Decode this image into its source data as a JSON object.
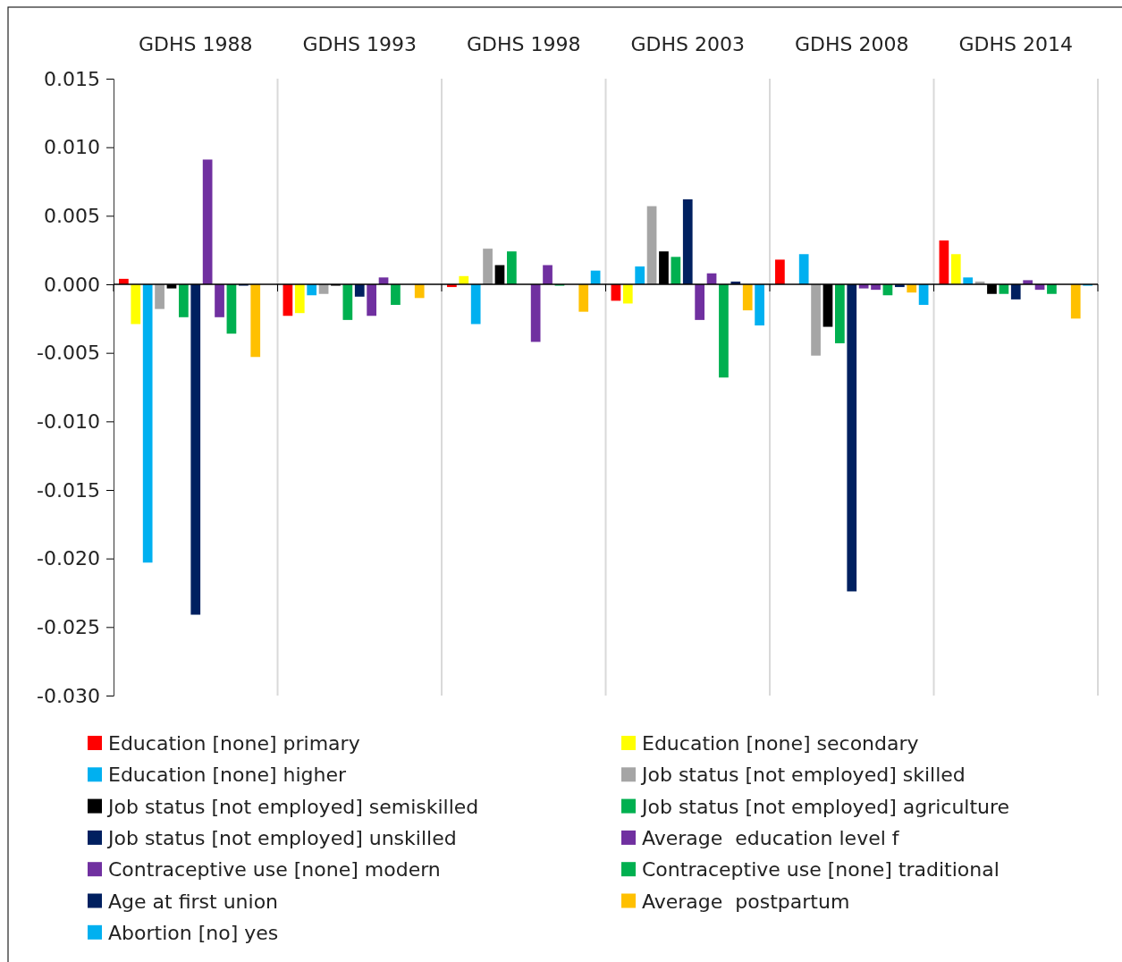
{
  "chart_data": {
    "type": "bar",
    "categories": [
      "GDHS 1988",
      "GDHS 1993",
      "GDHS 1998",
      "GDHS 2003",
      "GDHS 2008",
      "GDHS 2014"
    ],
    "series": [
      {
        "name": "Education [none] primary",
        "color": "#ff0000",
        "values": [
          0.0004,
          -0.0023,
          -0.0002,
          -0.0012,
          0.0018,
          0.0032
        ]
      },
      {
        "name": "Education [none] secondary",
        "color": "#ffff00",
        "values": [
          -0.0029,
          -0.0021,
          0.0006,
          -0.0014,
          0,
          0.0022
        ]
      },
      {
        "name": "Education [none] higher",
        "color": "#00b0f0",
        "values": [
          -0.0203,
          -0.0008,
          -0.0029,
          0.0013,
          0.0022,
          0.0005
        ]
      },
      {
        "name": "Job status [not employed] skilled",
        "color": "#a5a5a5",
        "values": [
          -0.0018,
          -0.0007,
          0.0026,
          0.0057,
          -0.0052,
          0.0002
        ]
      },
      {
        "name": "Job status [not employed] semiskilled",
        "color": "#000000",
        "values": [
          -0.0003,
          -0.0001,
          0.0014,
          0.0024,
          -0.0031,
          -0.0007
        ]
      },
      {
        "name": "Job status [not employed] agriculture",
        "color": "#00b050",
        "values": [
          -0.0024,
          -0.0026,
          0.0024,
          0.002,
          -0.0043,
          -0.0007
        ]
      },
      {
        "name": "Job status [not employed] unskilled",
        "color": "#002060",
        "values": [
          -0.0241,
          -0.0009,
          0,
          0.0062,
          -0.0224,
          -0.0011
        ]
      },
      {
        "name": "Average  education level f",
        "color": "#7030a0",
        "values": [
          0.0091,
          -0.0023,
          -0.0042,
          -0.0026,
          -0.0003,
          0.0003
        ]
      },
      {
        "name": "Contraceptive use [none] modern",
        "color": "#7030a0",
        "values": [
          -0.0024,
          0.0005,
          0.0014,
          0.0008,
          -0.0004,
          -0.0004
        ]
      },
      {
        "name": "Contraceptive use [none] traditional",
        "color": "#00b050",
        "values": [
          -0.0036,
          -0.0015,
          -0.0001,
          -0.0068,
          -0.0008,
          -0.0007
        ]
      },
      {
        "name": "Age at first union",
        "color": "#002060",
        "values": [
          -0.0001,
          0,
          0,
          0.0002,
          -0.0002,
          0
        ]
      },
      {
        "name": "Average  postpartum",
        "color": "#ffc000",
        "values": [
          -0.0053,
          -0.001,
          -0.002,
          -0.0019,
          -0.0006,
          -0.0025
        ]
      },
      {
        "name": "Abortion [no] yes",
        "color": "#00b0f0",
        "values": [
          0,
          0,
          0.001,
          -0.003,
          -0.0015,
          -0.0001
        ]
      }
    ],
    "ylim": [
      -0.03,
      0.015
    ],
    "yticks": [
      {
        "value": 0.015,
        "label": "0.015"
      },
      {
        "value": 0.01,
        "label": "0.010"
      },
      {
        "value": 0.005,
        "label": "0.005"
      },
      {
        "value": 0,
        "label": "0.000"
      },
      {
        "value": -0.005,
        "label": "-0.005"
      },
      {
        "value": -0.01,
        "label": "-0.010"
      },
      {
        "value": -0.015,
        "label": "-0.015"
      },
      {
        "value": -0.02,
        "label": "-0.020"
      },
      {
        "value": -0.025,
        "label": "-0.025"
      },
      {
        "value": -0.03,
        "label": "-0.030"
      }
    ],
    "grid": "x",
    "legend": "bottom"
  }
}
